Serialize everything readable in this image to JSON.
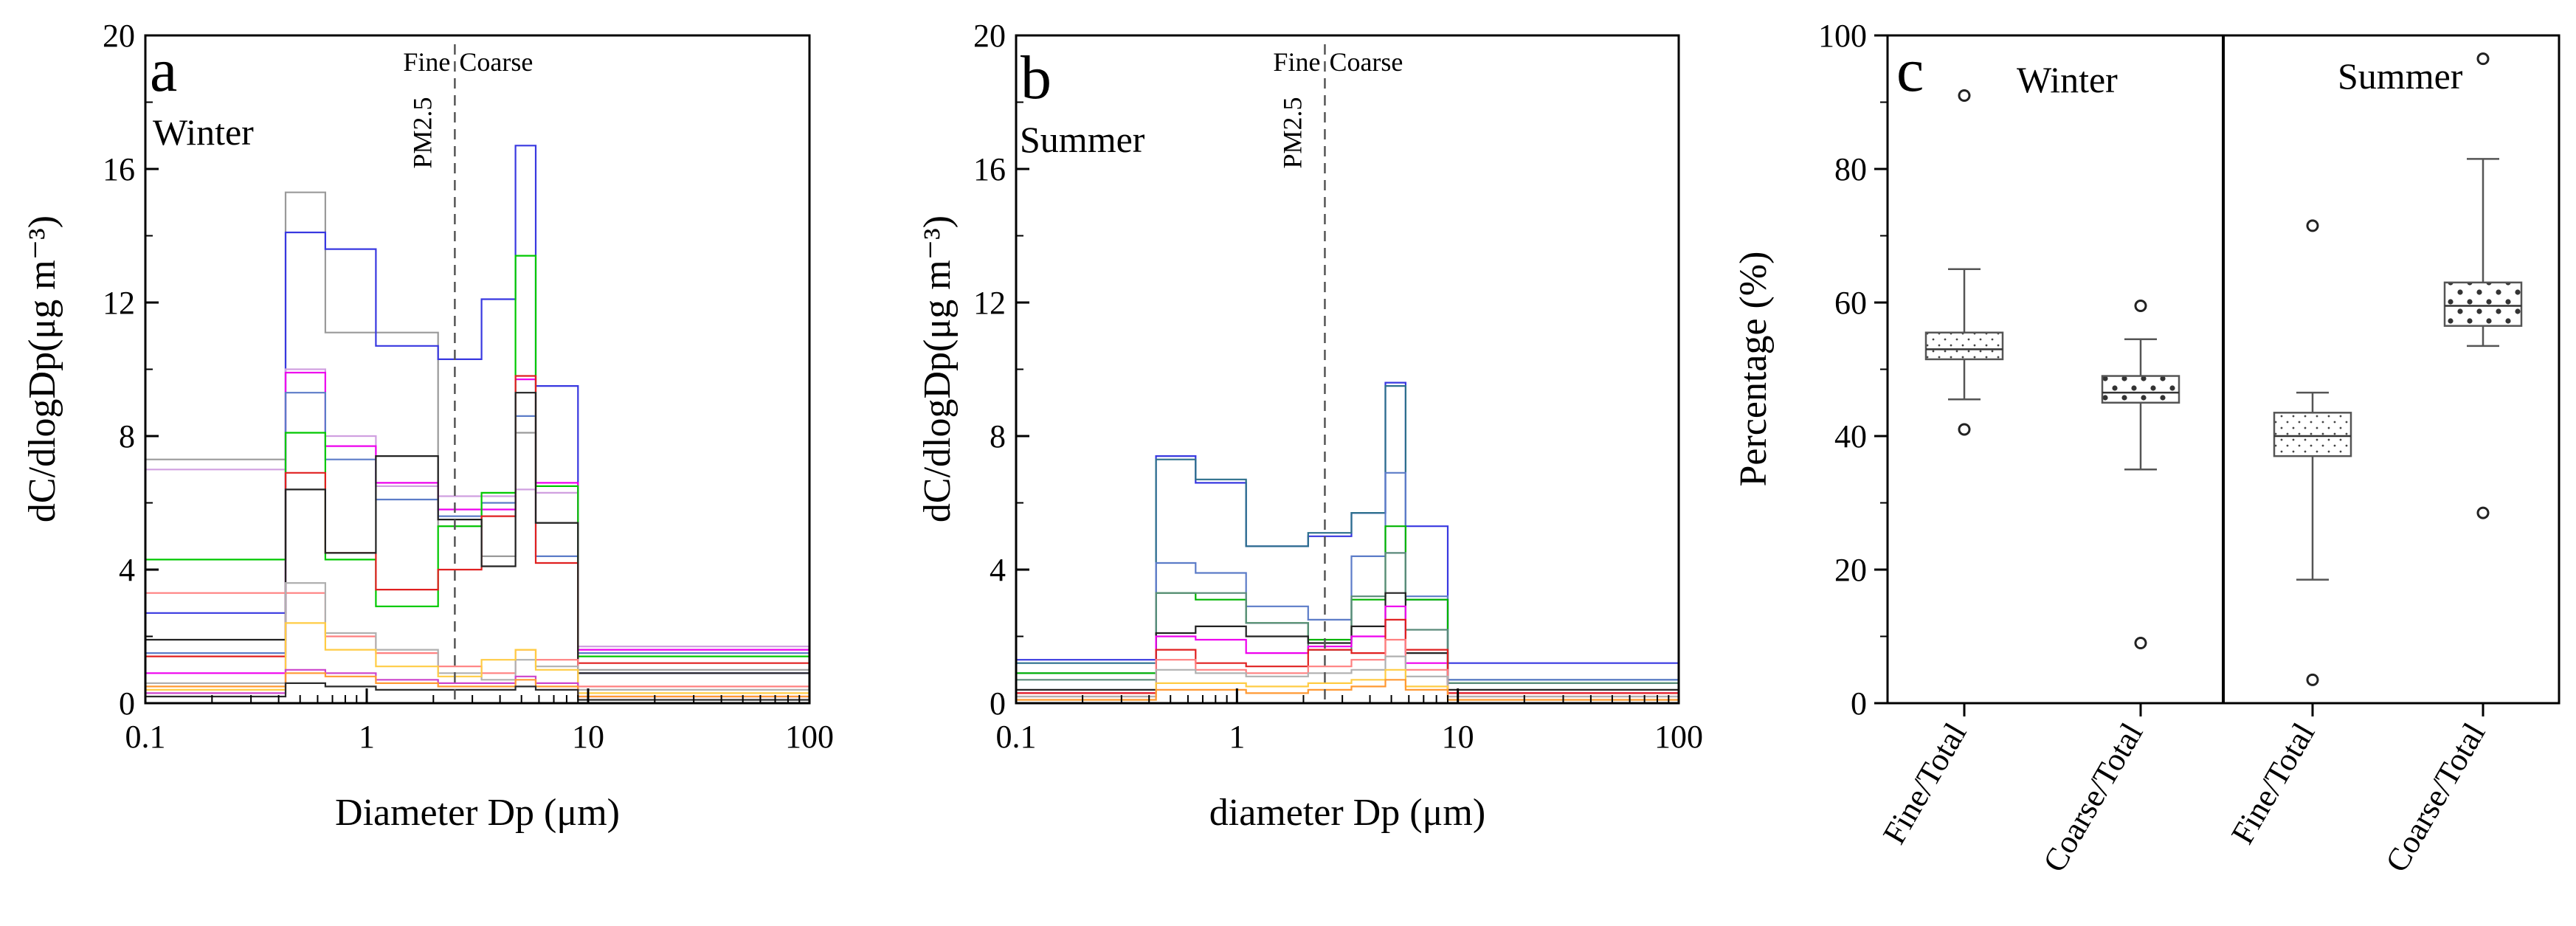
{
  "chart_data": [
    {
      "panel": "a",
      "type": "line",
      "title": "Winter",
      "xlabel": "Diameter Dp (μm)",
      "ylabel": "dC/dlogDp(μg m⁻³)",
      "xscale": "log",
      "xlim": [
        0.1,
        100
      ],
      "ylim": [
        0,
        20
      ],
      "xticks": [
        "0.1",
        "1",
        "10",
        "100"
      ],
      "yticks": [
        "0",
        "4",
        "8",
        "12",
        "16",
        "20"
      ],
      "bin_edges": [
        0.1,
        0.43,
        0.65,
        1.1,
        2.1,
        3.3,
        4.7,
        5.8,
        9.0,
        100
      ],
      "cut_line": {
        "x": 2.5,
        "label": "PM2.5",
        "left_label": "Fine",
        "right_label": "Coarse"
      },
      "series": [
        {
          "name": "s1",
          "color": "#9a9a9a",
          "values": [
            7.3,
            15.3,
            11.1,
            11.1,
            5.3,
            4.4,
            8.1,
            5.4,
            1.0
          ]
        },
        {
          "name": "s2",
          "color": "#3838e0",
          "values": [
            2.7,
            14.1,
            13.6,
            10.7,
            10.3,
            12.1,
            16.7,
            9.5,
            0.9
          ]
        },
        {
          "name": "s3",
          "color": "#d0a0e0",
          "values": [
            7.0,
            10.0,
            8.0,
            6.5,
            6.2,
            6.2,
            6.4,
            6.3,
            1.7
          ]
        },
        {
          "name": "s4",
          "color": "#ee00ee",
          "values": [
            0.9,
            9.9,
            7.7,
            6.6,
            5.8,
            5.8,
            9.7,
            6.6,
            1.6
          ]
        },
        {
          "name": "s5",
          "color": "#5c7cc8",
          "values": [
            1.5,
            9.3,
            7.3,
            6.1,
            5.6,
            6.0,
            8.6,
            4.4,
            1.5
          ]
        },
        {
          "name": "s6",
          "color": "#00c800",
          "values": [
            4.3,
            8.1,
            4.3,
            2.9,
            5.3,
            6.3,
            13.4,
            6.5,
            1.4
          ]
        },
        {
          "name": "s7",
          "color": "#e02020",
          "values": [
            1.4,
            6.9,
            4.5,
            3.4,
            4.0,
            5.6,
            9.8,
            4.2,
            1.2
          ]
        },
        {
          "name": "s8",
          "color": "#222222",
          "values": [
            1.9,
            6.4,
            4.5,
            7.4,
            5.5,
            4.1,
            9.3,
            5.4,
            0.9
          ]
        },
        {
          "name": "s9",
          "color": "#ff8080",
          "values": [
            3.3,
            3.3,
            2.0,
            1.5,
            1.1,
            0.9,
            1.6,
            1.3,
            0.5
          ]
        },
        {
          "name": "s10",
          "color": "#b0b0b0",
          "values": [
            0.6,
            3.6,
            2.1,
            1.6,
            0.9,
            0.7,
            1.3,
            1.1,
            0.4
          ]
        },
        {
          "name": "s11",
          "color": "#ffcc44",
          "values": [
            0.4,
            2.4,
            1.6,
            1.1,
            0.8,
            1.3,
            1.6,
            1.0,
            0.3
          ]
        },
        {
          "name": "s12",
          "color": "#cc44cc",
          "values": [
            0.3,
            1.0,
            0.9,
            0.7,
            0.6,
            0.6,
            0.8,
            0.6,
            0.2
          ]
        },
        {
          "name": "s13",
          "color": "#ff9933",
          "values": [
            0.5,
            0.9,
            0.8,
            0.6,
            0.5,
            0.5,
            0.7,
            0.5,
            0.2
          ]
        },
        {
          "name": "s14",
          "color": "#2a2a2a",
          "values": [
            0.2,
            0.6,
            0.5,
            0.4,
            0.4,
            0.4,
            0.5,
            0.4,
            0.1
          ]
        }
      ]
    },
    {
      "panel": "b",
      "type": "line",
      "title": "Summer",
      "xlabel": "diameter Dp (μm)",
      "ylabel": "dC/dlogDp(μg m⁻³)",
      "xscale": "log",
      "xlim": [
        0.1,
        100
      ],
      "ylim": [
        0,
        20
      ],
      "xticks": [
        "0.1",
        "1",
        "10",
        "100"
      ],
      "yticks": [
        "0",
        "4",
        "8",
        "12",
        "16",
        "20"
      ],
      "bin_edges": [
        0.1,
        0.43,
        0.65,
        1.1,
        2.1,
        3.3,
        4.7,
        5.8,
        9.0,
        100
      ],
      "cut_line": {
        "x": 2.5,
        "label": "PM2.5",
        "left_label": "Fine",
        "right_label": "Coarse"
      },
      "series": [
        {
          "name": "s1",
          "color": "#3838e0",
          "values": [
            1.3,
            7.4,
            6.6,
            4.7,
            5.0,
            5.7,
            9.6,
            5.3,
            1.2
          ]
        },
        {
          "name": "s2",
          "color": "#2c6f8c",
          "values": [
            1.2,
            7.3,
            6.7,
            4.7,
            5.1,
            5.7,
            9.5,
            3.1,
            0.7
          ]
        },
        {
          "name": "s3",
          "color": "#5c7cc8",
          "values": [
            0.9,
            4.2,
            3.9,
            2.9,
            2.5,
            4.4,
            6.9,
            3.2,
            0.7
          ]
        },
        {
          "name": "s4",
          "color": "#00b400",
          "values": [
            0.9,
            3.3,
            3.1,
            2.4,
            1.9,
            3.1,
            5.3,
            3.1,
            0.6
          ]
        },
        {
          "name": "s5",
          "color": "#5a8a7a",
          "values": [
            0.7,
            3.3,
            3.3,
            2.4,
            1.6,
            3.2,
            4.5,
            2.2,
            0.6
          ]
        },
        {
          "name": "s6",
          "color": "#222222",
          "values": [
            0.4,
            2.1,
            2.3,
            2.0,
            1.8,
            2.3,
            3.3,
            1.5,
            0.4
          ]
        },
        {
          "name": "s7",
          "color": "#ee00ee",
          "values": [
            0.3,
            2.0,
            1.9,
            1.5,
            1.7,
            2.0,
            2.9,
            1.2,
            0.3
          ]
        },
        {
          "name": "s8",
          "color": "#e02020",
          "values": [
            0.3,
            1.6,
            1.2,
            1.1,
            1.6,
            1.5,
            2.5,
            1.6,
            0.3
          ]
        },
        {
          "name": "s9",
          "color": "#ff8080",
          "values": [
            0.2,
            1.3,
            1.0,
            0.9,
            1.1,
            1.3,
            1.9,
            1.0,
            0.2
          ]
        },
        {
          "name": "s10",
          "color": "#b0b0b0",
          "values": [
            0.2,
            1.0,
            0.9,
            0.8,
            0.9,
            1.0,
            1.4,
            0.8,
            0.2
          ]
        },
        {
          "name": "s11",
          "color": "#ffcc44",
          "values": [
            0.1,
            0.6,
            0.6,
            0.5,
            0.6,
            0.7,
            1.0,
            0.5,
            0.1
          ]
        },
        {
          "name": "s12",
          "color": "#ff9933",
          "values": [
            0.1,
            0.4,
            0.4,
            0.3,
            0.4,
            0.5,
            0.7,
            0.4,
            0.1
          ]
        }
      ]
    },
    {
      "panel": "c",
      "type": "box",
      "ylabel": "Percentage (%)",
      "ylim": [
        0,
        100
      ],
      "yticks": [
        "0",
        "20",
        "40",
        "60",
        "80",
        "100"
      ],
      "groups": [
        "Winter",
        "Summer"
      ],
      "boxes": [
        {
          "group": "Winter",
          "label": "Fine/Total",
          "q1": 51.5,
          "median": 53.0,
          "q3": 55.5,
          "whisker_low": 45.5,
          "whisker_high": 65.0,
          "outliers": [
            41.0,
            91.0
          ],
          "pattern": "fine-dots"
        },
        {
          "group": "Winter",
          "label": "Coarse/Total",
          "q1": 45.0,
          "median": 46.5,
          "q3": 49.0,
          "whisker_low": 35.0,
          "whisker_high": 54.5,
          "outliers": [
            9.0,
            59.5
          ],
          "pattern": "coarse-dots"
        },
        {
          "group": "Summer",
          "label": "Fine/Total",
          "q1": 37.0,
          "median": 40.0,
          "q3": 43.5,
          "whisker_low": 18.5,
          "whisker_high": 46.5,
          "outliers": [
            3.5,
            71.5
          ],
          "pattern": "fine-dots"
        },
        {
          "group": "Summer",
          "label": "Coarse/Total",
          "q1": 56.5,
          "median": 59.5,
          "q3": 63.0,
          "whisker_low": 53.5,
          "whisker_high": 81.5,
          "outliers": [
            28.5,
            96.5
          ],
          "pattern": "coarse-dots"
        }
      ]
    }
  ]
}
